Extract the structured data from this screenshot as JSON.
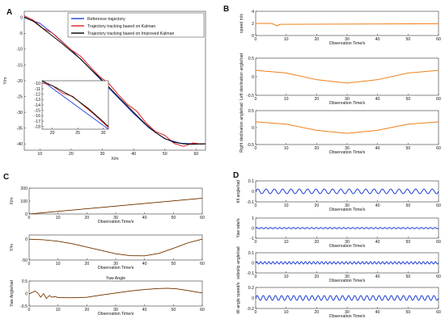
{
  "panel_labels": [
    "A",
    "B",
    "C",
    "D"
  ],
  "colors": {
    "blue": "#1f3fd6",
    "red": "#e02020",
    "black": "#000000",
    "orange": "#ef7f1a",
    "frame": "#333333"
  },
  "chart_data": [
    {
      "id": "A",
      "type": "line",
      "xlabel": "X/m",
      "ylabel": "Y/m",
      "xlim": [
        5,
        63
      ],
      "ylim": [
        -42,
        2
      ],
      "xticks": [
        10,
        20,
        30,
        40,
        50,
        60
      ],
      "yticks": [
        0,
        -5,
        -10,
        -15,
        -20,
        -25,
        -30,
        -35,
        -40
      ],
      "legend": [
        "Reference trajectory",
        "Trajectory tracking based on Kalman",
        "Trajectory tracking based on Improved  Kalman"
      ],
      "series": [
        {
          "name": "Reference trajectory",
          "color": "#1f3fd6",
          "x": [
            5,
            10,
            15,
            20,
            25,
            30,
            35,
            40,
            45,
            50,
            55,
            60,
            63
          ],
          "y": [
            0,
            -1.8,
            -5.7,
            -10.2,
            -15.1,
            -20.2,
            -25.3,
            -30.4,
            -35,
            -38.4,
            -39.8,
            -40,
            -40
          ]
        },
        {
          "name": "Trajectory tracking based on Kalman",
          "color": "#e02020",
          "x": [
            5,
            8,
            11,
            14,
            17,
            20,
            23,
            26,
            29,
            32,
            35,
            38,
            41,
            44,
            47,
            50,
            53,
            56,
            59,
            62,
            63
          ],
          "y": [
            0.6,
            -0.9,
            -3.4,
            -4.9,
            -7.6,
            -10.2,
            -12.2,
            -15.5,
            -18.6,
            -20.8,
            -24.3,
            -27.5,
            -29.6,
            -33.4,
            -36.1,
            -37.3,
            -39.9,
            -40.8,
            -39.7,
            -40.1,
            -39.9
          ]
        },
        {
          "name": "Trajectory tracking based on Improved  Kalman",
          "color": "#000000",
          "x": [
            5,
            8,
            11,
            14,
            17,
            20,
            23,
            26,
            29,
            32,
            35,
            38,
            41,
            44,
            47,
            50,
            53,
            56,
            59,
            62,
            63
          ],
          "y": [
            0.2,
            -1.2,
            -3.5,
            -5.8,
            -8.1,
            -10.6,
            -13.1,
            -16.1,
            -18.9,
            -21.9,
            -25,
            -28,
            -31,
            -33.9,
            -36.4,
            -38.3,
            -39.5,
            -40,
            -40.1,
            -40,
            -40
          ]
        }
      ],
      "inset": {
        "xlim": [
          18,
          31
        ],
        "ylim": [
          -18.5,
          -9.5
        ],
        "xticks": [
          20,
          25,
          30
        ],
        "yticks": [
          -10,
          -11,
          -12,
          -13,
          -14,
          -15,
          -16,
          -17,
          -18
        ],
        "series": [
          {
            "color": "#1f3fd6",
            "x": [
              18,
              31
            ],
            "y": [
              -9.5,
              -18.5
            ]
          },
          {
            "color": "#e02020",
            "x": [
              18,
              20,
              22,
              24,
              26,
              28,
              30,
              31
            ],
            "y": [
              -9.9,
              -10.4,
              -11.8,
              -12.4,
              -14.0,
              -15.6,
              -17.3,
              -18.2
            ]
          },
          {
            "color": "#000000",
            "x": [
              18,
              21,
              24,
              27,
              30,
              31
            ],
            "y": [
              -9.5,
              -10.9,
              -12.5,
              -14.6,
              -17.1,
              -18.0
            ]
          }
        ]
      }
    },
    {
      "id": "B1",
      "type": "line",
      "xlabel": "Observation Time/s",
      "ylabel": "speed m/s",
      "xlim": [
        0,
        60
      ],
      "ylim": [
        0,
        4
      ],
      "xticks": [
        0,
        10,
        20,
        30,
        40,
        50,
        60
      ],
      "yticks": [
        4,
        2,
        0
      ],
      "series": [
        {
          "color": "#ef7f1a",
          "x": [
            0,
            5,
            6,
            7,
            8,
            60
          ],
          "y": [
            2.0,
            2.0,
            1.85,
            1.6,
            1.85,
            1.95
          ]
        }
      ]
    },
    {
      "id": "B2",
      "type": "line",
      "xlabel": "Observation Time/s",
      "ylabel": "Left declination angle/rad",
      "xlim": [
        0,
        60
      ],
      "ylim": [
        -0.5,
        0.5
      ],
      "xticks": [
        0,
        10,
        20,
        30,
        40,
        50,
        60
      ],
      "yticks": [
        0.5,
        0,
        -0.5
      ],
      "series": [
        {
          "color": "#ef7f1a",
          "x": [
            0,
            10,
            20,
            30,
            40,
            50,
            60
          ],
          "y": [
            0.17,
            0.1,
            -0.08,
            -0.17,
            -0.08,
            0.1,
            0.17
          ]
        }
      ]
    },
    {
      "id": "B3",
      "type": "line",
      "xlabel": "Observation Time/s",
      "ylabel": "Right declination angle/rad",
      "xlim": [
        0,
        60
      ],
      "ylim": [
        -0.5,
        0.5
      ],
      "xticks": [
        0,
        10,
        20,
        30,
        40,
        50,
        60
      ],
      "yticks": [
        0.5,
        0,
        -0.5
      ],
      "series": [
        {
          "color": "#ef7f1a",
          "x": [
            0,
            10,
            20,
            30,
            40,
            50,
            60
          ],
          "y": [
            0.17,
            0.1,
            -0.08,
            -0.17,
            -0.08,
            0.1,
            0.17
          ]
        }
      ]
    },
    {
      "id": "C1",
      "type": "line",
      "xlabel": "Observation Time/s",
      "ylabel": "X/m",
      "xlim": [
        0,
        60
      ],
      "ylim": [
        0,
        200
      ],
      "xticks": [
        0,
        10,
        20,
        30,
        40,
        50,
        60
      ],
      "yticks": [
        200,
        100,
        0
      ],
      "series": [
        {
          "color": "#ef7f1a",
          "x": [
            0,
            60
          ],
          "y": [
            0,
            122
          ]
        },
        {
          "color": "#111111",
          "x": [
            0,
            60
          ],
          "y": [
            0,
            122
          ]
        }
      ]
    },
    {
      "id": "C2",
      "type": "line",
      "xlabel": "Observation Time/s",
      "ylabel": "Y/m",
      "xlim": [
        0,
        60
      ],
      "ylim": [
        -50,
        10
      ],
      "xticks": [
        0,
        10,
        20,
        30,
        40,
        50,
        60
      ],
      "yticks": [
        0,
        -50
      ],
      "series": [
        {
          "color": "#ef7f1a",
          "x": [
            0,
            5,
            10,
            15,
            20,
            25,
            30,
            35,
            40,
            45,
            50,
            55,
            60
          ],
          "y": [
            0,
            -1.5,
            -5,
            -11,
            -19,
            -27,
            -35,
            -39.5,
            -40,
            -34,
            -22,
            -9,
            0
          ]
        },
        {
          "color": "#111111",
          "x": [
            0,
            5,
            10,
            15,
            20,
            25,
            30,
            35,
            40,
            45,
            50,
            55,
            60
          ],
          "y": [
            0,
            -1.5,
            -5,
            -11,
            -19,
            -27,
            -35,
            -39.5,
            -40,
            -34,
            -22,
            -9,
            0
          ]
        }
      ]
    },
    {
      "id": "C3",
      "type": "line",
      "title": "Yaw Angle",
      "xlabel": "Observation Time/s",
      "ylabel": "Yaw Angle/rad",
      "xlim": [
        0,
        60
      ],
      "ylim": [
        -0.5,
        0.5
      ],
      "xticks": [
        0,
        10,
        20,
        30,
        40,
        50,
        60
      ],
      "yticks": [
        0.5,
        0,
        -0.5
      ],
      "series": [
        {
          "color": "#ef7f1a",
          "x": [
            0,
            2,
            3,
            4,
            5,
            6,
            7,
            8,
            9,
            10,
            15,
            20,
            25,
            30,
            35,
            40,
            45,
            48,
            51,
            55,
            60
          ],
          "y": [
            -0.02,
            0.1,
            0.02,
            -0.15,
            0.0,
            -0.2,
            -0.08,
            -0.15,
            -0.12,
            -0.16,
            -0.17,
            -0.15,
            -0.06,
            0.02,
            0.1,
            0.16,
            0.2,
            0.21,
            0.19,
            0.12,
            0.02
          ]
        },
        {
          "color": "#111111",
          "x": [
            0,
            2,
            3,
            4,
            5,
            6,
            7,
            8,
            9,
            10,
            15,
            20,
            25,
            30,
            35,
            40,
            45,
            48,
            51,
            55,
            60
          ],
          "y": [
            -0.02,
            0.1,
            0.02,
            -0.15,
            0.0,
            -0.2,
            -0.08,
            -0.15,
            -0.12,
            -0.16,
            -0.17,
            -0.15,
            -0.06,
            0.02,
            0.1,
            0.16,
            0.2,
            0.21,
            0.19,
            0.12,
            0.02
          ]
        }
      ]
    },
    {
      "id": "D1",
      "type": "line",
      "xlabel": "Observation Time/s",
      "ylabel": "tilt angle/rad",
      "xlim": [
        0,
        60
      ],
      "ylim": [
        -0.1,
        0.1
      ],
      "xticks": [
        0,
        10,
        20,
        30,
        40,
        50,
        60
      ],
      "yticks": [
        0.1,
        0,
        -0.1
      ],
      "series": [
        {
          "color": "#1f3fd6",
          "wave": {
            "amp": 0.022,
            "cycles": 22
          }
        }
      ]
    },
    {
      "id": "D2",
      "type": "line",
      "xlabel": "Observation Time/s",
      "ylabel": "Yaw rate/s",
      "xlim": [
        0,
        60
      ],
      "ylim": [
        -1,
        1
      ],
      "xticks": [
        0,
        10,
        20,
        30,
        40,
        50,
        60
      ],
      "yticks": [
        1,
        0,
        -1
      ],
      "series": [
        {
          "color": "#1f3fd6",
          "wave": {
            "amp": 0.06,
            "cycles": 40
          }
        }
      ]
    },
    {
      "id": "D3",
      "type": "line",
      "xlabel": "Observation Time/s",
      "ylabel": "sideslip angle/rad",
      "xlim": [
        0,
        60
      ],
      "ylim": [
        -0.1,
        0.1
      ],
      "xticks": [
        0,
        10,
        20,
        30,
        40,
        50,
        60
      ],
      "yticks": [
        0.1,
        0,
        -0.1
      ],
      "series": [
        {
          "color": "#1f3fd6",
          "wave": {
            "amp": 0.012,
            "cycles": 45
          }
        }
      ]
    },
    {
      "id": "D4",
      "type": "line",
      "xlabel": "Observation Time/s",
      "ylabel": "tilt angle speed/s",
      "xlim": [
        0,
        60
      ],
      "ylim": [
        -0.2,
        0.2
      ],
      "xticks": [
        0,
        10,
        20,
        30,
        40,
        50,
        60
      ],
      "yticks": [
        0.2,
        0,
        -0.2
      ],
      "series": [
        {
          "color": "#1f3fd6",
          "wave": {
            "amp": 0.045,
            "cycles": 30
          }
        }
      ]
    }
  ]
}
